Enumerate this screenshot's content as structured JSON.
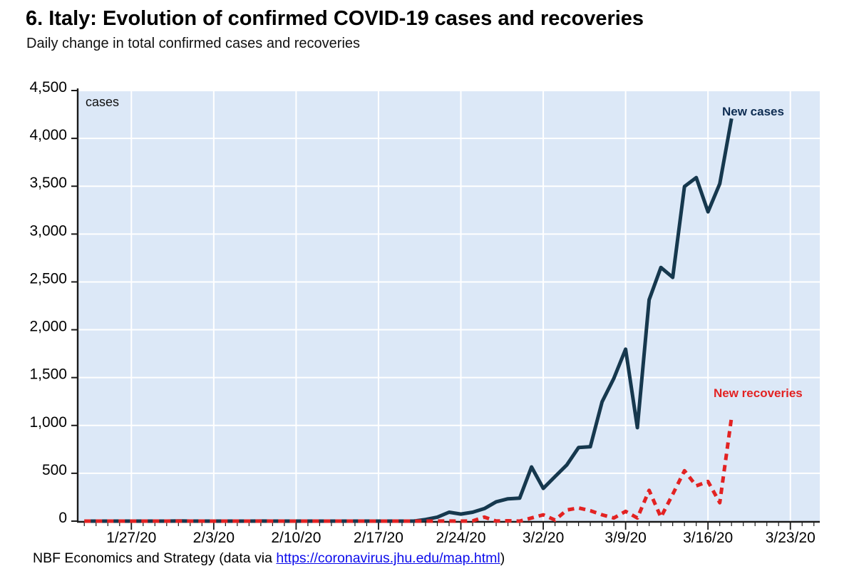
{
  "page": {
    "title": "6. Italy: Evolution of confirmed COVID-19 cases and recoveries",
    "subtitle": "Daily change in total confirmed cases and recoveries",
    "footer_prefix": "NBF Economics and Strategy (data via ",
    "footer_link": "https://coronavirus.jhu.edu/map.html",
    "footer_suffix": ")"
  },
  "colors": {
    "plot_bg": "#dce8f7",
    "grid": "#ffffff",
    "axis": "#1a1a1a",
    "new_cases_line": "#16384e",
    "new_cases_label": "#0d2c52",
    "new_recoveries": "#e32222",
    "link": "#0b0beb"
  },
  "chart_data": {
    "type": "line",
    "title": "6. Italy: Evolution of confirmed COVID-19 cases and recoveries",
    "subtitle": "Daily change in total confirmed cases and recoveries",
    "unit_label": "cases",
    "grid": true,
    "legend_position": "inline-end-of-line-labels",
    "x": [
      "1/23/20",
      "1/24/20",
      "1/25/20",
      "1/26/20",
      "1/27/20",
      "1/28/20",
      "1/29/20",
      "1/30/20",
      "1/31/20",
      "2/1/20",
      "2/2/20",
      "2/3/20",
      "2/4/20",
      "2/5/20",
      "2/6/20",
      "2/7/20",
      "2/8/20",
      "2/9/20",
      "2/10/20",
      "2/11/20",
      "2/12/20",
      "2/13/20",
      "2/14/20",
      "2/15/20",
      "2/16/20",
      "2/17/20",
      "2/18/20",
      "2/19/20",
      "2/20/20",
      "2/21/20",
      "2/22/20",
      "2/23/20",
      "2/24/20",
      "2/25/20",
      "2/26/20",
      "2/27/20",
      "2/28/20",
      "2/29/20",
      "3/1/20",
      "3/2/20",
      "3/3/20",
      "3/4/20",
      "3/5/20",
      "3/6/20",
      "3/7/20",
      "3/8/20",
      "3/9/20",
      "3/10/20",
      "3/11/20",
      "3/12/20",
      "3/13/20",
      "3/14/20",
      "3/15/20",
      "3/16/20",
      "3/17/20",
      "3/18/20"
    ],
    "series": [
      {
        "name": "New cases",
        "color": "#16384e",
        "label_color": "#0d2c52",
        "style": "solid",
        "values": [
          0,
          0,
          0,
          0,
          0,
          0,
          0,
          0,
          2,
          0,
          0,
          0,
          0,
          0,
          0,
          1,
          0,
          0,
          0,
          0,
          0,
          0,
          0,
          0,
          0,
          0,
          0,
          0,
          0,
          17,
          42,
          93,
          74,
          93,
          131,
          202,
          233,
          240,
          566,
          342,
          466,
          587,
          769,
          778,
          1247,
          1492,
          1797,
          977,
          2313,
          2651,
          2547,
          3497,
          3590,
          3233,
          3526,
          4207
        ]
      },
      {
        "name": "New recoveries",
        "color": "#e32222",
        "label_color": "#e32222",
        "style": "dashed",
        "dash": [
          9,
          7
        ],
        "values": [
          0,
          0,
          0,
          0,
          0,
          0,
          0,
          0,
          0,
          0,
          0,
          0,
          0,
          0,
          0,
          0,
          0,
          0,
          0,
          0,
          0,
          0,
          0,
          0,
          0,
          0,
          0,
          0,
          0,
          0,
          1,
          1,
          0,
          2,
          42,
          1,
          4,
          0,
          33,
          66,
          11,
          116,
          138,
          109,
          66,
          33,
          102,
          33,
          322,
          41,
          280,
          527,
          369,
          414,
          192,
          1084
        ]
      }
    ],
    "x_axis": {
      "total_slots": 63,
      "tick_labels": [
        "1/27/20",
        "2/3/20",
        "2/10/20",
        "2/17/20",
        "2/24/20",
        "3/2/20",
        "3/9/20",
        "3/16/20",
        "3/23/20"
      ],
      "tick_slots": [
        4,
        11,
        18,
        25,
        32,
        39,
        46,
        53,
        60
      ]
    },
    "y_axis": {
      "min": 0,
      "max": 4500,
      "step": 500,
      "tick_labels": [
        "0",
        "500",
        "1,000",
        "1,500",
        "2,000",
        "2,500",
        "3,000",
        "3,500",
        "4,000",
        "4,500"
      ]
    }
  }
}
